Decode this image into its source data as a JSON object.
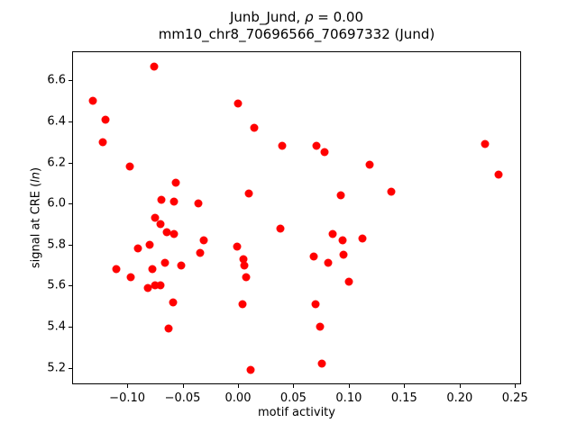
{
  "title": {
    "line1_prefix": "Junb_Jund, ",
    "line1_italic": "ρ",
    "line1_suffix": " = 0.00",
    "line2": "mm10_chr8_70696566_70697332 (Jund)"
  },
  "axes": {
    "xlabel": "motif activity",
    "ylabel_prefix": "signal at CRE (",
    "ylabel_italic": "ln",
    "ylabel_suffix": ")",
    "xlim": [
      -0.1497,
      0.2555
    ],
    "ylim": [
      5.119,
      6.74
    ],
    "x_ticks": [
      -0.1,
      -0.05,
      0.0,
      0.05,
      0.1,
      0.15,
      0.2,
      0.25
    ],
    "x_tick_labels": [
      "−0.10",
      "−0.05",
      "0.00",
      "0.05",
      "0.10",
      "0.15",
      "0.20",
      "0.25"
    ],
    "y_ticks": [
      5.2,
      5.4,
      5.6,
      5.8,
      6.0,
      6.2,
      6.4,
      6.6
    ],
    "y_tick_labels": [
      "5.2",
      "5.4",
      "5.6",
      "5.8",
      "6.0",
      "6.2",
      "6.4",
      "6.6"
    ],
    "grid": false,
    "legend": "none"
  },
  "chart_data": {
    "type": "scatter",
    "title": "Junb_Jund, ρ = 0.00 — mm10_chr8_70696566_70697332 (Jund)",
    "xlabel": "motif activity",
    "ylabel": "signal at CRE (ln)",
    "marker_color": "#ff0000",
    "marker_diameter_px": 9,
    "points": [
      [
        -0.076,
        6.67
      ],
      [
        -0.131,
        6.5
      ],
      [
        -0.12,
        6.41
      ],
      [
        -0.122,
        6.3
      ],
      [
        -0.098,
        6.18
      ],
      [
        0.0,
        6.49
      ],
      [
        0.015,
        6.37
      ],
      [
        0.04,
        6.28
      ],
      [
        -0.056,
        6.1
      ],
      [
        -0.069,
        6.02
      ],
      [
        -0.058,
        6.01
      ],
      [
        -0.036,
        6.0
      ],
      [
        0.01,
        6.05
      ],
      [
        -0.075,
        5.93
      ],
      [
        0.071,
        6.28
      ],
      [
        0.078,
        6.25
      ],
      [
        0.119,
        6.19
      ],
      [
        0.093,
        6.04
      ],
      [
        0.138,
        6.06
      ],
      [
        0.223,
        6.29
      ],
      [
        0.235,
        6.14
      ],
      [
        -0.07,
        5.9
      ],
      [
        -0.064,
        5.86
      ],
      [
        -0.058,
        5.85
      ],
      [
        -0.08,
        5.8
      ],
      [
        -0.09,
        5.78
      ],
      [
        -0.031,
        5.82
      ],
      [
        -0.034,
        5.76
      ],
      [
        -0.001,
        5.79
      ],
      [
        -0.11,
        5.68
      ],
      [
        -0.097,
        5.64
      ],
      [
        -0.077,
        5.68
      ],
      [
        -0.066,
        5.71
      ],
      [
        -0.051,
        5.7
      ],
      [
        0.005,
        5.73
      ],
      [
        0.006,
        5.7
      ],
      [
        -0.081,
        5.59
      ],
      [
        -0.075,
        5.6
      ],
      [
        -0.07,
        5.6
      ],
      [
        0.007,
        5.64
      ],
      [
        -0.059,
        5.52
      ],
      [
        0.004,
        5.51
      ],
      [
        -0.063,
        5.39
      ],
      [
        0.011,
        5.19
      ],
      [
        0.038,
        5.88
      ],
      [
        0.085,
        5.85
      ],
      [
        0.094,
        5.82
      ],
      [
        0.112,
        5.83
      ],
      [
        0.068,
        5.74
      ],
      [
        0.081,
        5.71
      ],
      [
        0.095,
        5.75
      ],
      [
        0.1,
        5.62
      ],
      [
        0.07,
        5.51
      ],
      [
        0.074,
        5.4
      ],
      [
        0.076,
        5.22
      ]
    ]
  }
}
